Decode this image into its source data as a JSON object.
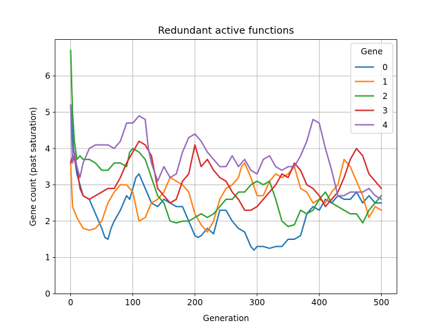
{
  "chart_data": {
    "type": "line",
    "title": "Redundant active functions",
    "xlabel": "Generation",
    "ylabel": "Gene count (past saturation)",
    "xlim": [
      -25,
      525
    ],
    "ylim": [
      0,
      7
    ],
    "xticks": [
      0,
      100,
      200,
      300,
      400,
      500
    ],
    "yticks": [
      0,
      1,
      2,
      3,
      4,
      5,
      6
    ],
    "grid": true,
    "legend": {
      "title": "Gene",
      "placement": "top-right"
    },
    "series": [
      {
        "name": "0",
        "color": "#1f77b4",
        "x": [
          0,
          5,
          10,
          20,
          30,
          40,
          50,
          55,
          60,
          65,
          70,
          80,
          90,
          95,
          100,
          105,
          110,
          115,
          120,
          130,
          140,
          150,
          160,
          170,
          180,
          190,
          200,
          205,
          210,
          220,
          230,
          240,
          250,
          260,
          270,
          280,
          290,
          295,
          300,
          310,
          320,
          330,
          340,
          350,
          360,
          370,
          380,
          390,
          400,
          410,
          420,
          430,
          440,
          450,
          460,
          470,
          480,
          490,
          500
        ],
        "y": [
          5.2,
          3.9,
          3.3,
          2.7,
          2.6,
          2.2,
          1.8,
          1.55,
          1.5,
          1.8,
          2.0,
          2.3,
          2.7,
          2.6,
          2.9,
          3.2,
          3.3,
          3.1,
          2.9,
          2.5,
          2.4,
          2.6,
          2.5,
          2.4,
          2.4,
          2.0,
          1.6,
          1.55,
          1.6,
          1.8,
          1.65,
          2.3,
          2.3,
          2.0,
          1.8,
          1.7,
          1.3,
          1.2,
          1.3,
          1.3,
          1.25,
          1.3,
          1.3,
          1.5,
          1.5,
          1.6,
          2.2,
          2.4,
          2.3,
          2.6,
          2.5,
          2.7,
          2.6,
          2.6,
          2.8,
          2.5,
          2.7,
          2.5,
          2.5
        ]
      },
      {
        "name": "1",
        "color": "#ff7f0e",
        "x": [
          0,
          3,
          10,
          20,
          30,
          40,
          50,
          60,
          70,
          80,
          90,
          100,
          110,
          120,
          130,
          140,
          150,
          160,
          170,
          180,
          190,
          200,
          210,
          220,
          230,
          240,
          250,
          260,
          270,
          275,
          280,
          290,
          300,
          310,
          320,
          330,
          340,
          350,
          360,
          370,
          380,
          390,
          400,
          410,
          420,
          430,
          440,
          450,
          460,
          470,
          480,
          490,
          500
        ],
        "y": [
          3.6,
          2.4,
          2.1,
          1.8,
          1.75,
          1.8,
          2.0,
          2.5,
          2.8,
          3.0,
          3.0,
          2.8,
          2.0,
          2.1,
          2.5,
          2.6,
          2.8,
          3.2,
          3.1,
          3.0,
          2.8,
          2.2,
          1.9,
          1.7,
          2.0,
          2.6,
          2.9,
          3.0,
          3.2,
          3.5,
          3.6,
          3.2,
          2.7,
          2.7,
          3.1,
          3.3,
          3.2,
          3.3,
          3.5,
          2.9,
          2.8,
          2.5,
          2.6,
          2.5,
          2.8,
          3.0,
          3.7,
          3.5,
          3.1,
          2.7,
          2.1,
          2.4,
          2.3
        ]
      },
      {
        "name": "2",
        "color": "#2ca02c",
        "x": [
          0,
          3,
          6,
          10,
          15,
          20,
          30,
          40,
          50,
          60,
          70,
          80,
          90,
          95,
          100,
          110,
          120,
          130,
          140,
          150,
          160,
          170,
          180,
          190,
          200,
          210,
          220,
          230,
          240,
          250,
          260,
          270,
          280,
          290,
          300,
          310,
          320,
          330,
          340,
          350,
          360,
          370,
          380,
          390,
          400,
          410,
          420,
          430,
          440,
          450,
          460,
          470,
          480,
          490,
          500
        ],
        "y": [
          6.7,
          5.0,
          4.2,
          3.7,
          3.8,
          3.7,
          3.7,
          3.6,
          3.4,
          3.4,
          3.6,
          3.6,
          3.5,
          3.9,
          4.0,
          3.9,
          3.7,
          3.2,
          2.7,
          2.5,
          2.0,
          1.95,
          2.0,
          2.0,
          2.1,
          2.2,
          2.1,
          2.2,
          2.4,
          2.6,
          2.6,
          2.8,
          2.8,
          3.0,
          3.1,
          3.0,
          3.1,
          2.6,
          2.0,
          1.85,
          1.9,
          2.3,
          2.2,
          2.3,
          2.6,
          2.8,
          2.5,
          2.4,
          2.3,
          2.2,
          2.2,
          1.95,
          2.3,
          2.5,
          2.7
        ]
      },
      {
        "name": "3",
        "color": "#d62728",
        "x": [
          0,
          3,
          6,
          10,
          15,
          20,
          30,
          40,
          50,
          60,
          70,
          80,
          90,
          100,
          110,
          120,
          130,
          140,
          150,
          160,
          170,
          180,
          190,
          200,
          210,
          220,
          230,
          240,
          250,
          260,
          270,
          280,
          290,
          300,
          310,
          320,
          330,
          340,
          350,
          360,
          370,
          380,
          390,
          400,
          410,
          420,
          430,
          440,
          450,
          460,
          470,
          480,
          490,
          500
        ],
        "y": [
          3.6,
          3.8,
          3.7,
          3.5,
          2.9,
          2.7,
          2.6,
          2.7,
          2.8,
          2.9,
          2.9,
          3.2,
          3.6,
          3.9,
          4.2,
          4.1,
          3.8,
          2.9,
          2.7,
          2.5,
          2.6,
          3.1,
          3.3,
          4.1,
          3.5,
          3.7,
          3.4,
          3.2,
          3.1,
          2.8,
          2.6,
          2.3,
          2.3,
          2.4,
          2.6,
          2.8,
          3.0,
          3.3,
          3.2,
          3.6,
          3.4,
          3.0,
          2.9,
          2.7,
          2.4,
          2.6,
          2.8,
          3.2,
          3.7,
          4.0,
          3.8,
          3.3,
          3.1,
          2.9
        ]
      },
      {
        "name": "4",
        "color": "#9467bd",
        "x": [
          0,
          3,
          6,
          10,
          15,
          20,
          30,
          40,
          50,
          60,
          70,
          80,
          90,
          100,
          110,
          120,
          125,
          130,
          140,
          150,
          160,
          170,
          180,
          190,
          200,
          210,
          220,
          230,
          240,
          250,
          260,
          270,
          280,
          290,
          300,
          310,
          320,
          330,
          340,
          350,
          360,
          370,
          380,
          390,
          400,
          410,
          420,
          430,
          440,
          450,
          460,
          470,
          480,
          490,
          500
        ],
        "y": [
          5.2,
          3.6,
          3.9,
          3.5,
          3.2,
          3.6,
          4.0,
          4.1,
          4.1,
          4.1,
          4.0,
          4.2,
          4.7,
          4.7,
          4.9,
          4.8,
          4.0,
          3.6,
          3.1,
          3.5,
          3.2,
          3.3,
          3.9,
          4.3,
          4.4,
          4.2,
          3.9,
          3.7,
          3.5,
          3.5,
          3.8,
          3.5,
          3.7,
          3.4,
          3.3,
          3.7,
          3.8,
          3.5,
          3.4,
          3.5,
          3.5,
          3.8,
          4.2,
          4.8,
          4.7,
          4.0,
          3.4,
          2.7,
          2.7,
          2.8,
          2.8,
          2.8,
          2.9,
          2.7,
          2.6
        ]
      }
    ]
  }
}
